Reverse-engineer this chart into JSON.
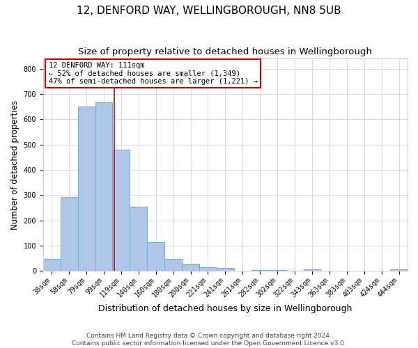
{
  "title": "12, DENFORD WAY, WELLINGBOROUGH, NN8 5UB",
  "subtitle": "Size of property relative to detached houses in Wellingborough",
  "xlabel": "Distribution of detached houses by size in Wellingborough",
  "ylabel": "Number of detached properties",
  "bin_labels": [
    "38sqm",
    "58sqm",
    "79sqm",
    "99sqm",
    "119sqm",
    "140sqm",
    "160sqm",
    "180sqm",
    "200sqm",
    "221sqm",
    "241sqm",
    "261sqm",
    "282sqm",
    "302sqm",
    "322sqm",
    "343sqm",
    "363sqm",
    "383sqm",
    "403sqm",
    "424sqm",
    "444sqm"
  ],
  "bar_values": [
    47,
    293,
    651,
    668,
    479,
    253,
    113,
    48,
    28,
    15,
    10,
    0,
    4,
    3,
    0,
    5,
    0,
    0,
    0,
    0,
    5
  ],
  "bar_color": "#aec6e8",
  "bar_edge_color": "#6baed6",
  "annotation_title": "12 DENFORD WAY: 111sqm",
  "annotation_line1": "← 52% of detached houses are smaller (1,349)",
  "annotation_line2": "47% of semi-detached houses are larger (1,221) →",
  "annotation_box_color": "#ffffff",
  "annotation_box_edge_color": "#cc0000",
  "vline_color": "#cc0000",
  "vline_x": 3.6,
  "ylim": [
    0,
    840
  ],
  "yticks": [
    0,
    100,
    200,
    300,
    400,
    500,
    600,
    700,
    800
  ],
  "grid_color": "#d0d0d0",
  "bg_color": "#ffffff",
  "footer1": "Contains HM Land Registry data © Crown copyright and database right 2024.",
  "footer2": "Contains public sector information licensed under the Open Government Licence v3.0.",
  "title_fontsize": 11,
  "subtitle_fontsize": 9.5,
  "xlabel_fontsize": 9,
  "ylabel_fontsize": 8.5,
  "annotation_fontsize": 7.5,
  "tick_fontsize": 7,
  "footer_fontsize": 6.5
}
